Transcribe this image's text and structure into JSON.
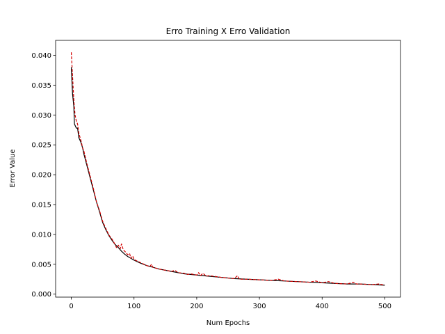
{
  "chart_data": {
    "type": "line",
    "title": "Erro Training X Erro Validation",
    "xlabel": "Num Epochs",
    "ylabel": "Error Value",
    "xlim": [
      -25,
      525
    ],
    "ylim": [
      -0.0005,
      0.0425
    ],
    "x_ticks": [
      0,
      100,
      200,
      300,
      400,
      500
    ],
    "x_tick_labels": [
      "0",
      "100",
      "200",
      "300",
      "400",
      "500"
    ],
    "y_ticks": [
      0.0,
      0.005,
      0.01,
      0.015,
      0.02,
      0.025,
      0.03,
      0.035,
      0.04
    ],
    "y_tick_labels": [
      "0.000",
      "0.005",
      "0.010",
      "0.015",
      "0.020",
      "0.025",
      "0.030",
      "0.035",
      "0.040"
    ],
    "grid": false,
    "legend": "none",
    "series": [
      {
        "color": "#000000",
        "style": "solid",
        "points": [
          [
            0,
            0.038
          ],
          [
            2,
            0.0335
          ],
          [
            4,
            0.0315
          ],
          [
            5,
            0.0285
          ],
          [
            8,
            0.0278
          ],
          [
            10,
            0.0278
          ],
          [
            12,
            0.0262
          ],
          [
            15,
            0.0255
          ],
          [
            18,
            0.0245
          ],
          [
            20,
            0.0235
          ],
          [
            25,
            0.0215
          ],
          [
            30,
            0.0195
          ],
          [
            35,
            0.0175
          ],
          [
            40,
            0.0155
          ],
          [
            45,
            0.0138
          ],
          [
            50,
            0.012
          ],
          [
            55,
            0.0108
          ],
          [
            60,
            0.0098
          ],
          [
            65,
            0.009
          ],
          [
            70,
            0.0083
          ],
          [
            75,
            0.0078
          ],
          [
            80,
            0.0072
          ],
          [
            85,
            0.0067
          ],
          [
            90,
            0.0063
          ],
          [
            95,
            0.006
          ],
          [
            100,
            0.0057
          ],
          [
            110,
            0.0052
          ],
          [
            120,
            0.0048
          ],
          [
            130,
            0.0045
          ],
          [
            140,
            0.0042
          ],
          [
            150,
            0.004
          ],
          [
            160,
            0.0038
          ],
          [
            170,
            0.0036
          ],
          [
            180,
            0.0034
          ],
          [
            190,
            0.0033
          ],
          [
            200,
            0.0032
          ],
          [
            220,
            0.003
          ],
          [
            240,
            0.0028
          ],
          [
            260,
            0.0026
          ],
          [
            280,
            0.0025
          ],
          [
            300,
            0.0024
          ],
          [
            320,
            0.0023
          ],
          [
            340,
            0.0022
          ],
          [
            360,
            0.0021
          ],
          [
            380,
            0.002
          ],
          [
            400,
            0.0019
          ],
          [
            420,
            0.0018
          ],
          [
            440,
            0.0017
          ],
          [
            460,
            0.0017
          ],
          [
            480,
            0.0016
          ],
          [
            500,
            0.0015
          ]
        ]
      },
      {
        "color": "#d40000",
        "style": "dashed",
        "points": [
          [
            0,
            0.0405
          ],
          [
            2,
            0.0365
          ],
          [
            4,
            0.0325
          ],
          [
            6,
            0.03
          ],
          [
            8,
            0.029
          ],
          [
            10,
            0.0285
          ],
          [
            12,
            0.027
          ],
          [
            14,
            0.0262
          ],
          [
            16,
            0.0255
          ],
          [
            18,
            0.0245
          ],
          [
            20,
            0.024
          ],
          [
            25,
            0.0218
          ],
          [
            30,
            0.0198
          ],
          [
            35,
            0.0178
          ],
          [
            40,
            0.0155
          ],
          [
            45,
            0.014
          ],
          [
            50,
            0.0122
          ],
          [
            55,
            0.011
          ],
          [
            60,
            0.0099
          ],
          [
            65,
            0.0092
          ],
          [
            70,
            0.0083
          ],
          [
            72,
            0.0078
          ],
          [
            75,
            0.0082
          ],
          [
            78,
            0.0076
          ],
          [
            80,
            0.0084
          ],
          [
            83,
            0.0074
          ],
          [
            86,
            0.0071
          ],
          [
            90,
            0.0066
          ],
          [
            93,
            0.0068
          ],
          [
            95,
            0.006
          ],
          [
            98,
            0.0064
          ],
          [
            100,
            0.0058
          ],
          [
            110,
            0.0053
          ],
          [
            120,
            0.0048
          ],
          [
            125,
            0.0046
          ],
          [
            128,
            0.005
          ],
          [
            130,
            0.0045
          ],
          [
            140,
            0.0042
          ],
          [
            150,
            0.004
          ],
          [
            160,
            0.0038
          ],
          [
            165,
            0.004
          ],
          [
            170,
            0.0036
          ],
          [
            180,
            0.0035
          ],
          [
            185,
            0.0033
          ],
          [
            190,
            0.0034
          ],
          [
            200,
            0.0032
          ],
          [
            203,
            0.0036
          ],
          [
            206,
            0.0031
          ],
          [
            210,
            0.0035
          ],
          [
            215,
            0.003
          ],
          [
            220,
            0.0031
          ],
          [
            240,
            0.0028
          ],
          [
            260,
            0.0026
          ],
          [
            265,
            0.0031
          ],
          [
            268,
            0.0025
          ],
          [
            280,
            0.0025
          ],
          [
            300,
            0.0024
          ],
          [
            320,
            0.0023
          ],
          [
            330,
            0.0025
          ],
          [
            340,
            0.0022
          ],
          [
            360,
            0.0021
          ],
          [
            380,
            0.002
          ],
          [
            390,
            0.0022
          ],
          [
            400,
            0.0019
          ],
          [
            410,
            0.0021
          ],
          [
            420,
            0.0018
          ],
          [
            440,
            0.0017
          ],
          [
            450,
            0.002
          ],
          [
            455,
            0.0017
          ],
          [
            460,
            0.0017
          ],
          [
            480,
            0.0016
          ],
          [
            490,
            0.0017
          ],
          [
            500,
            0.0015
          ]
        ]
      }
    ]
  }
}
